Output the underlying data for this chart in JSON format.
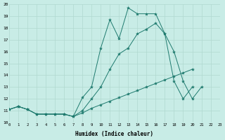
{
  "xlabel": "Humidex (Indice chaleur)",
  "bg_color": "#c8ece6",
  "grid_color": "#b0d8d0",
  "line_color": "#1e7a6e",
  "xlim": [
    0,
    23
  ],
  "ylim": [
    10,
    20
  ],
  "xticks": [
    0,
    1,
    2,
    3,
    4,
    5,
    6,
    7,
    8,
    9,
    10,
    11,
    12,
    13,
    14,
    15,
    16,
    17,
    18,
    19,
    20,
    21,
    22,
    23
  ],
  "yticks": [
    10,
    11,
    12,
    13,
    14,
    15,
    16,
    17,
    18,
    19,
    20
  ],
  "series": [
    {
      "x": [
        0,
        1,
        2,
        3,
        4,
        5,
        6,
        7,
        8,
        9,
        10,
        11,
        12,
        13,
        14,
        15,
        16,
        17,
        18,
        19,
        20,
        21,
        22
      ],
      "y": [
        11.1,
        11.35,
        11.1,
        10.7,
        10.7,
        10.7,
        10.7,
        10.5,
        12.1,
        13.0,
        16.3,
        18.7,
        17.1,
        19.7,
        19.2,
        19.2,
        19.2,
        17.5,
        13.5,
        12.0,
        13.0,
        null,
        null
      ]
    },
    {
      "x": [
        0,
        1,
        2,
        3,
        4,
        5,
        6,
        7,
        8,
        9,
        10,
        11,
        12,
        13,
        14,
        15,
        16,
        17,
        18,
        19,
        20,
        21,
        22
      ],
      "y": [
        11.1,
        11.35,
        11.1,
        10.7,
        10.7,
        10.7,
        10.7,
        10.5,
        11.0,
        12.0,
        13.0,
        14.5,
        15.8,
        16.3,
        17.5,
        17.9,
        18.4,
        17.5,
        16.0,
        13.5,
        12.0,
        13.0,
        null
      ]
    },
    {
      "x": [
        0,
        1,
        2,
        3,
        4,
        5,
        6,
        7,
        8,
        9,
        10,
        11,
        12,
        13,
        14,
        15,
        16,
        17,
        18,
        19,
        20,
        21,
        22
      ],
      "y": [
        11.1,
        11.35,
        11.1,
        10.7,
        10.7,
        10.7,
        10.7,
        10.5,
        10.8,
        11.2,
        11.5,
        11.8,
        12.1,
        12.4,
        12.7,
        13.0,
        13.3,
        13.6,
        13.9,
        14.2,
        14.5,
        null,
        null
      ]
    }
  ]
}
